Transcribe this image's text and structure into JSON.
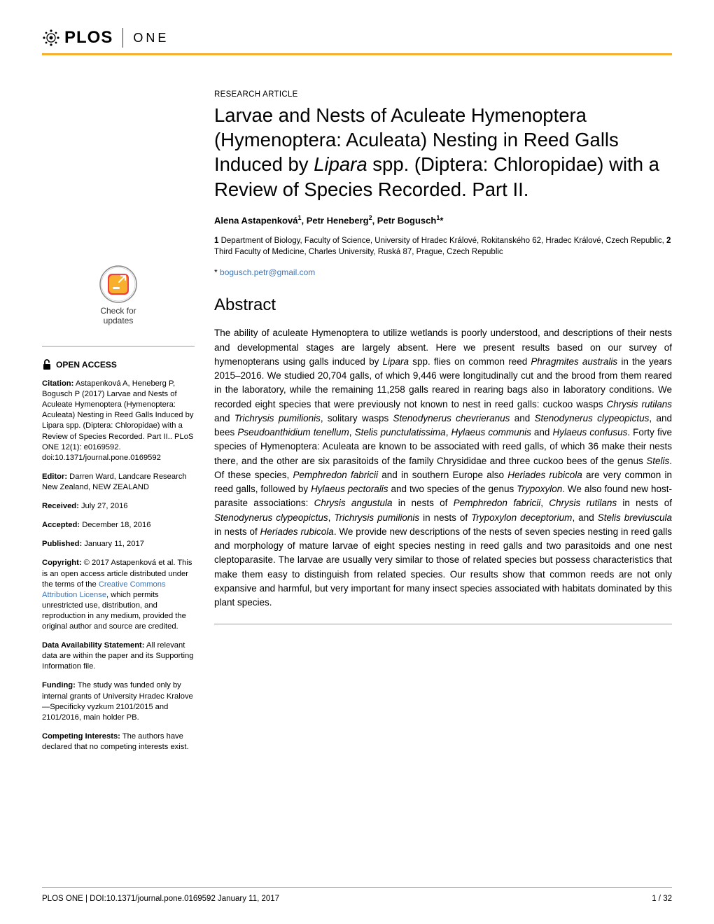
{
  "header": {
    "journal_logo_text": "PLOS",
    "journal_section": "ONE"
  },
  "check_updates": {
    "line1": "Check for",
    "line2": "updates"
  },
  "open_access_label": "OPEN ACCESS",
  "sidebar": {
    "citation_label": "Citation:",
    "citation_text": " Astapenková A, Heneberg P, Bogusch P (2017) Larvae and Nests of Aculeate Hymenoptera (Hymenoptera: Aculeata) Nesting in Reed Galls Induced by Lipara spp. (Diptera: Chloropidae) with a Review of Species Recorded. Part II.. PLoS ONE 12(1): e0169592. doi:10.1371/journal.pone.0169592",
    "editor_label": "Editor:",
    "editor_text": " Darren Ward, Landcare Research New Zealand, NEW ZEALAND",
    "received_label": "Received:",
    "received_text": " July 27, 2016",
    "accepted_label": "Accepted:",
    "accepted_text": " December 18, 2016",
    "published_label": "Published:",
    "published_text": " January 11, 2017",
    "copyright_label": "Copyright:",
    "copyright_text_pre": " © 2017 Astapenková et al. This is an open access article distributed under the terms of the ",
    "copyright_link": "Creative Commons Attribution License",
    "copyright_text_post": ", which permits unrestricted use, distribution, and reproduction in any medium, provided the original author and source are credited.",
    "data_label": "Data Availability Statement:",
    "data_text": " All relevant data are within the paper and its Supporting Information file.",
    "funding_label": "Funding:",
    "funding_text": " The study was funded only by internal grants of University Hradec Kralove—Specificky vyzkum 2101/2015 and 2101/2016, main holder PB.",
    "competing_label": "Competing Interests:",
    "competing_text": " The authors have declared that no competing interests exist."
  },
  "article": {
    "type": "RESEARCH ARTICLE",
    "title_html": "Larvae and Nests of Aculeate Hymenoptera (Hymenoptera: Aculeata) Nesting in Reed Galls Induced by <em>Lipara</em> spp. (Diptera: Chloropidae) with a Review of Species Recorded. Part II.",
    "authors_html": "Alena Astapenková<sup>1</sup>, Petr Heneberg<sup>2</sup>, Petr Bogusch<sup>1</sup>*",
    "affiliations_html": "<b>1</b> Department of Biology, Faculty of Science, University of Hradec Králové, Rokitanského 62, Hradec Králové, Czech Republic, <b>2</b> Third Faculty of Medicine, Charles University, Ruská 87, Prague, Czech Republic",
    "corresponding_prefix": "* ",
    "corresponding_email": "bogusch.petr@gmail.com",
    "abstract_heading": "Abstract",
    "abstract_html": "The ability of aculeate Hymenoptera to utilize wetlands is poorly understood, and descriptions of their nests and developmental stages are largely absent. Here we present results based on our survey of hymenopterans using galls induced by <em>Lipara</em> spp. flies on common reed <em>Phragmites australis</em> in the years 2015–2016. We studied 20,704 galls, of which 9,446 were longitudinally cut and the brood from them reared in the laboratory, while the remaining 11,258 galls reared in rearing bags also in laboratory conditions. We recorded eight species that were previously not known to nest in reed galls: cuckoo wasps <em>Chrysis rutilans</em> and <em>Trichrysis pumilionis</em>, solitary wasps <em>Stenodynerus chevrieranus</em> and <em>Stenodynerus clypeopictus</em>, and bees <em>Pseudoanthidium tenellum</em>, <em>Stelis punctulatissima</em>, <em>Hylaeus communis</em> and <em>Hylaeus confusus</em>. Forty five species of Hymenoptera: Aculeata are known to be associated with reed galls, of which 36 make their nests there, and the other are six parasitoids of the family Chrysididae and three cuckoo bees of the genus <em>Stelis</em>. Of these species, <em>Pemphredon fabricii</em> and in southern Europe also <em>Heriades rubicola</em> are very common in reed galls, followed by <em>Hylaeus pectoralis</em> and two species of the genus <em>Trypoxylon</em>. We also found new host-parasite associations: <em>Chrysis angustula</em> in nests of <em>Pemphredon fabricii</em>, <em>Chrysis rutilans</em> in nests of <em>Stenodynerus clypeopictus</em>, <em>Trichrysis pumilionis</em> in nests of <em>Trypoxylon deceptorium</em>, and <em>Stelis breviuscula</em> in nests of <em>Heriades rubicola</em>. We provide new descriptions of the nests of seven species nesting in reed galls and morphology of mature larvae of eight species nesting in reed galls and two parasitoids and one nest cleptoparasite. The larvae are usually very similar to those of related species but possess characteristics that make them easy to distinguish from related species. Our results show that common reeds are not only expansive and harmful, but very important for many insect species associated with habitats dominated by this plant species."
  },
  "footer": {
    "left": "PLOS ONE | DOI:10.1371/journal.pone.0169592    January 11, 2017",
    "right": "1 / 32"
  },
  "colors": {
    "accent_orange": "#f8af2d",
    "link_blue": "#3b74b8",
    "text": "#000000",
    "border_gray": "#999999"
  }
}
